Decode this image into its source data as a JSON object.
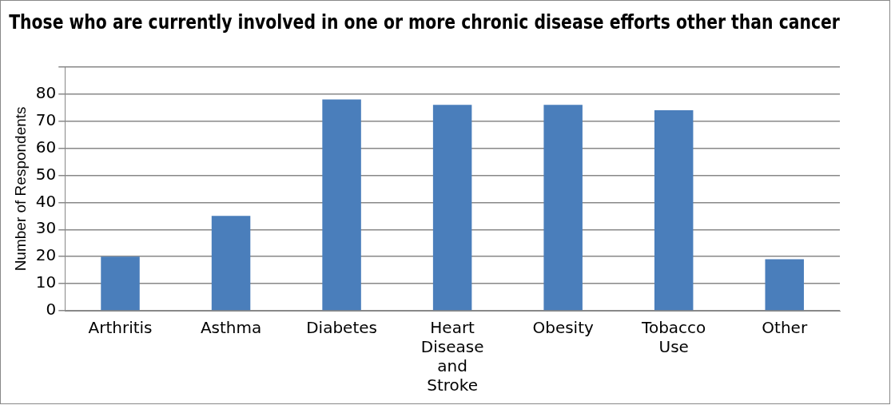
{
  "chart_data": {
    "type": "bar",
    "title": "Those who are currently involved in one or more chronic disease efforts other than cancer",
    "ylabel": "Number of Respondents",
    "categories": [
      "Arthritis",
      "Asthma",
      "Diabetes",
      "Heart Disease and Stroke",
      "Obesity",
      "Tobacco Use",
      "Other"
    ],
    "values": [
      20,
      35,
      78,
      76,
      76,
      74,
      19
    ],
    "color": "#4a7ebb",
    "ylim": [
      0,
      90
    ],
    "yticks": [
      0,
      10,
      20,
      30,
      40,
      50,
      60,
      70,
      80,
      {
        "value": 90,
        "label": null
      }
    ],
    "grid": "y",
    "legend": false
  }
}
